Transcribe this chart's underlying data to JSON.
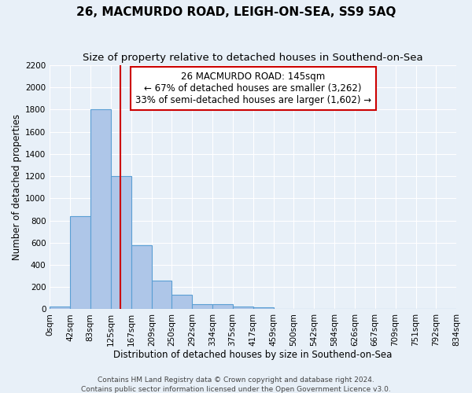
{
  "title1": "26, MACMURDO ROAD, LEIGH-ON-SEA, SS9 5AQ",
  "title2": "Size of property relative to detached houses in Southend-on-Sea",
  "xlabel": "Distribution of detached houses by size in Southend-on-Sea",
  "ylabel": "Number of detached properties",
  "bin_edges": [
    0,
    42,
    83,
    125,
    167,
    209,
    250,
    292,
    334,
    375,
    417,
    459,
    500,
    542,
    584,
    626,
    667,
    709,
    751,
    792,
    834
  ],
  "bar_heights": [
    25,
    840,
    1800,
    1200,
    580,
    255,
    130,
    45,
    45,
    25,
    15,
    0,
    0,
    0,
    0,
    0,
    0,
    0,
    0,
    0
  ],
  "bar_color": "#aec6e8",
  "bar_edge_color": "#5a9fd4",
  "red_line_x": 145,
  "red_line_color": "#cc0000",
  "ylim": [
    0,
    2200
  ],
  "yticks": [
    0,
    200,
    400,
    600,
    800,
    1000,
    1200,
    1400,
    1600,
    1800,
    2000,
    2200
  ],
  "xtick_labels": [
    "0sqm",
    "42sqm",
    "83sqm",
    "125sqm",
    "167sqm",
    "209sqm",
    "250sqm",
    "292sqm",
    "334sqm",
    "375sqm",
    "417sqm",
    "459sqm",
    "500sqm",
    "542sqm",
    "584sqm",
    "626sqm",
    "667sqm",
    "709sqm",
    "751sqm",
    "792sqm",
    "834sqm"
  ],
  "annotation_line1": "26 MACMURDO ROAD: 145sqm",
  "annotation_line2": "← 67% of detached houses are smaller (3,262)",
  "annotation_line3": "33% of semi-detached houses are larger (1,602) →",
  "annotation_box_color": "#ffffff",
  "annotation_box_edge": "#cc0000",
  "footer1": "Contains HM Land Registry data © Crown copyright and database right 2024.",
  "footer2": "Contains public sector information licensed under the Open Government Licence v3.0.",
  "background_color": "#e8f0f8",
  "grid_color": "#ffffff",
  "title1_fontsize": 11,
  "title2_fontsize": 9.5,
  "xlabel_fontsize": 8.5,
  "ylabel_fontsize": 8.5,
  "tick_fontsize": 7.5,
  "annotation_fontsize": 8.5,
  "footer_fontsize": 6.5
}
